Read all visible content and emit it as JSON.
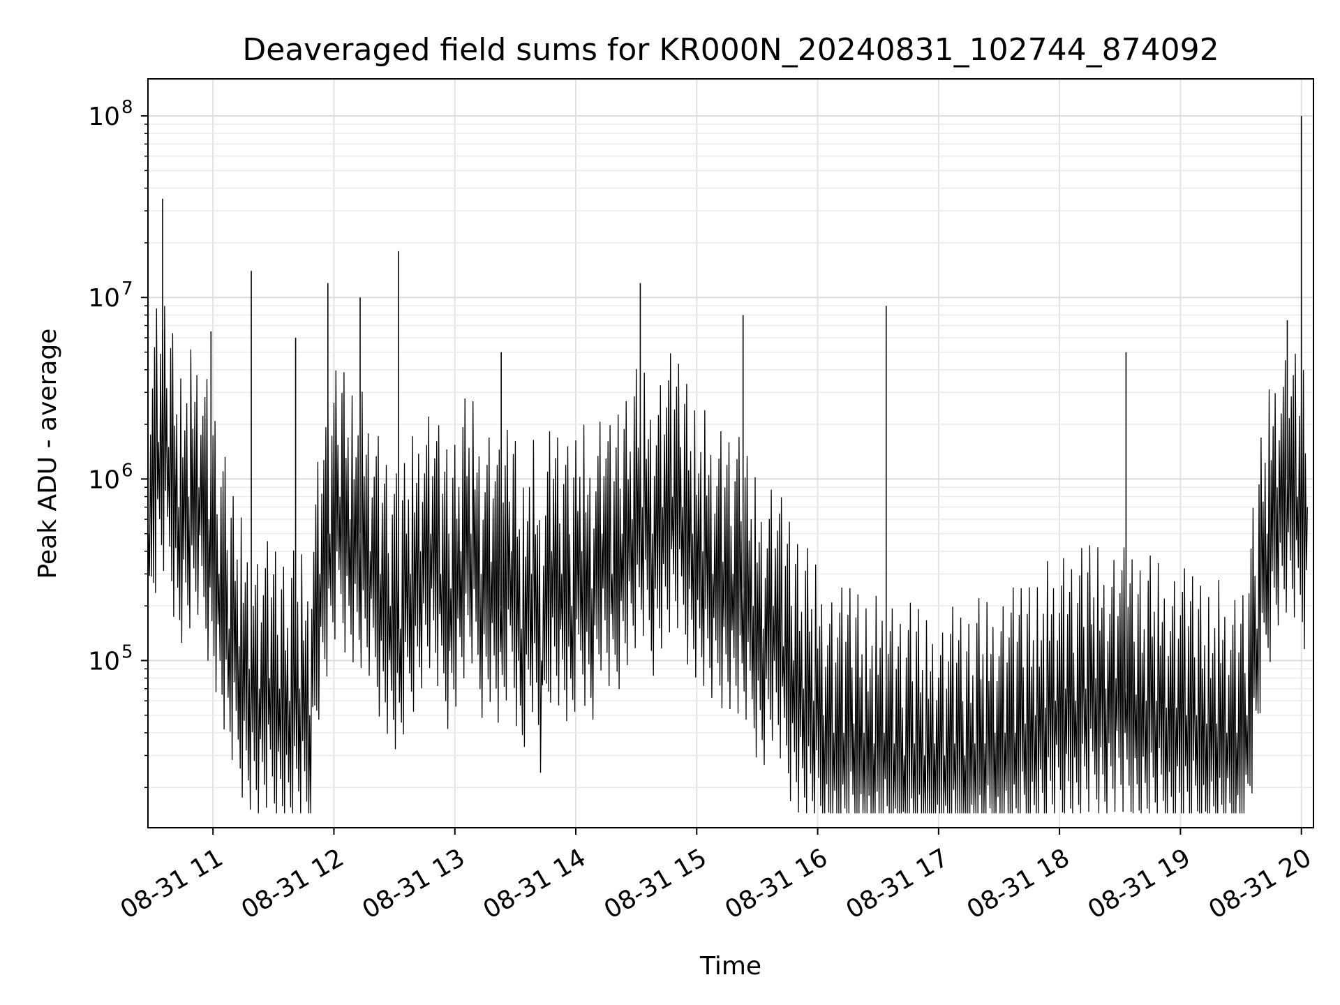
{
  "chart_data": {
    "type": "line",
    "title": "Deaveraged field sums for KR000N_20240831_102744_874092",
    "xlabel": "Time",
    "ylabel": "Peak ADU - average",
    "yscale": "log",
    "grid": true,
    "x_range": [
      "2024-08-31 10:27:44",
      "2024-08-31 20:06:00"
    ],
    "ylim": [
      12000,
      160000000
    ],
    "x_ticks": [
      "08-31 11",
      "08-31 12",
      "08-31 13",
      "08-31 14",
      "08-31 15",
      "08-31 16",
      "08-31 17",
      "08-31 18",
      "08-31 19",
      "08-31 20"
    ],
    "y_ticks": [
      {
        "base": "10",
        "exp": "5"
      },
      {
        "base": "10",
        "exp": "6"
      },
      {
        "base": "10",
        "exp": "7"
      },
      {
        "base": "10",
        "exp": "8"
      }
    ],
    "line_color": "#000000",
    "series": [
      {
        "x": [
          "10:28",
          "10:33",
          "10:38",
          "10:43",
          "10:48",
          "10:53",
          "10:58",
          "11:03",
          "11:08",
          "11:13",
          "11:18",
          "11:23",
          "11:28",
          "11:33",
          "11:38",
          "11:43",
          "11:48",
          "11:53",
          "11:58",
          "12:03",
          "12:08",
          "12:13",
          "12:18",
          "12:23",
          "12:28",
          "12:33",
          "12:38",
          "12:43",
          "12:48",
          "12:53",
          "12:58",
          "13:03",
          "13:08",
          "13:13",
          "13:18",
          "13:23",
          "13:28",
          "13:33",
          "13:38",
          "13:43",
          "13:48",
          "13:53",
          "13:58",
          "14:03",
          "14:08",
          "14:13",
          "14:18",
          "14:23",
          "14:28",
          "14:33",
          "14:38",
          "14:43",
          "14:48",
          "14:53",
          "14:58",
          "15:03",
          "15:08",
          "15:13",
          "15:18",
          "15:23",
          "15:28",
          "15:33",
          "15:38",
          "15:43",
          "15:48",
          "15:53",
          "15:58",
          "16:03",
          "16:08",
          "16:13",
          "16:18",
          "16:23",
          "16:28",
          "16:33",
          "16:38",
          "16:43",
          "16:48",
          "16:53",
          "16:58",
          "17:03",
          "17:08",
          "17:13",
          "17:18",
          "17:23",
          "17:28",
          "17:33",
          "17:38",
          "17:43",
          "17:48",
          "17:53",
          "17:58",
          "18:03",
          "18:08",
          "18:13",
          "18:18",
          "18:23",
          "18:28",
          "18:33",
          "18:38",
          "18:43",
          "18:48",
          "18:53",
          "18:58",
          "19:03",
          "19:08",
          "19:13",
          "19:18",
          "19:23",
          "19:28",
          "19:33",
          "19:38",
          "19:43",
          "19:48",
          "19:53",
          "19:58",
          "20:03"
        ],
        "y": [
          500000,
          1600000,
          1500000,
          700000,
          800000,
          900000,
          600000,
          300000,
          150000,
          120000,
          90000,
          70000,
          80000,
          70000,
          60000,
          70000,
          50000,
          300000,
          500000,
          800000,
          600000,
          500000,
          400000,
          300000,
          200000,
          150000,
          300000,
          400000,
          500000,
          300000,
          250000,
          400000,
          500000,
          300000,
          350000,
          200000,
          400000,
          150000,
          300000,
          100000,
          400000,
          300000,
          200000,
          400000,
          250000,
          500000,
          300000,
          500000,
          600000,
          700000,
          500000,
          700000,
          800000,
          700000,
          500000,
          400000,
          300000,
          350000,
          300000,
          250000,
          200000,
          150000,
          200000,
          120000,
          100000,
          70000,
          60000,
          50000,
          40000,
          40000,
          45000,
          40000,
          35000,
          40000,
          35000,
          30000,
          35000,
          30000,
          35000,
          30000,
          35000,
          30000,
          35000,
          35000,
          40000,
          40000,
          40000,
          45000,
          50000,
          55000,
          60000,
          70000,
          60000,
          70000,
          80000,
          70000,
          80000,
          70000,
          65000,
          60000,
          60000,
          55000,
          55000,
          50000,
          50000,
          45000,
          45000,
          40000,
          40000,
          50000,
          150000,
          500000,
          900000,
          1000000,
          800000,
          700000
        ],
        "spikes": [
          {
            "x": "10:35",
            "y": 35000000
          },
          {
            "x": "10:59",
            "y": 6500000
          },
          {
            "x": "11:19",
            "y": 14000000
          },
          {
            "x": "11:41",
            "y": 6000000
          },
          {
            "x": "11:57",
            "y": 12000000
          },
          {
            "x": "12:13",
            "y": 10000000
          },
          {
            "x": "12:32",
            "y": 18000000
          },
          {
            "x": "13:23",
            "y": 5000000
          },
          {
            "x": "14:32",
            "y": 12000000
          },
          {
            "x": "15:23",
            "y": 8000000
          },
          {
            "x": "16:34",
            "y": 9000000
          },
          {
            "x": "18:33",
            "y": 5000000
          },
          {
            "x": "19:53",
            "y": 7500000
          },
          {
            "x": "20:00",
            "y": 100000000
          }
        ]
      }
    ]
  }
}
